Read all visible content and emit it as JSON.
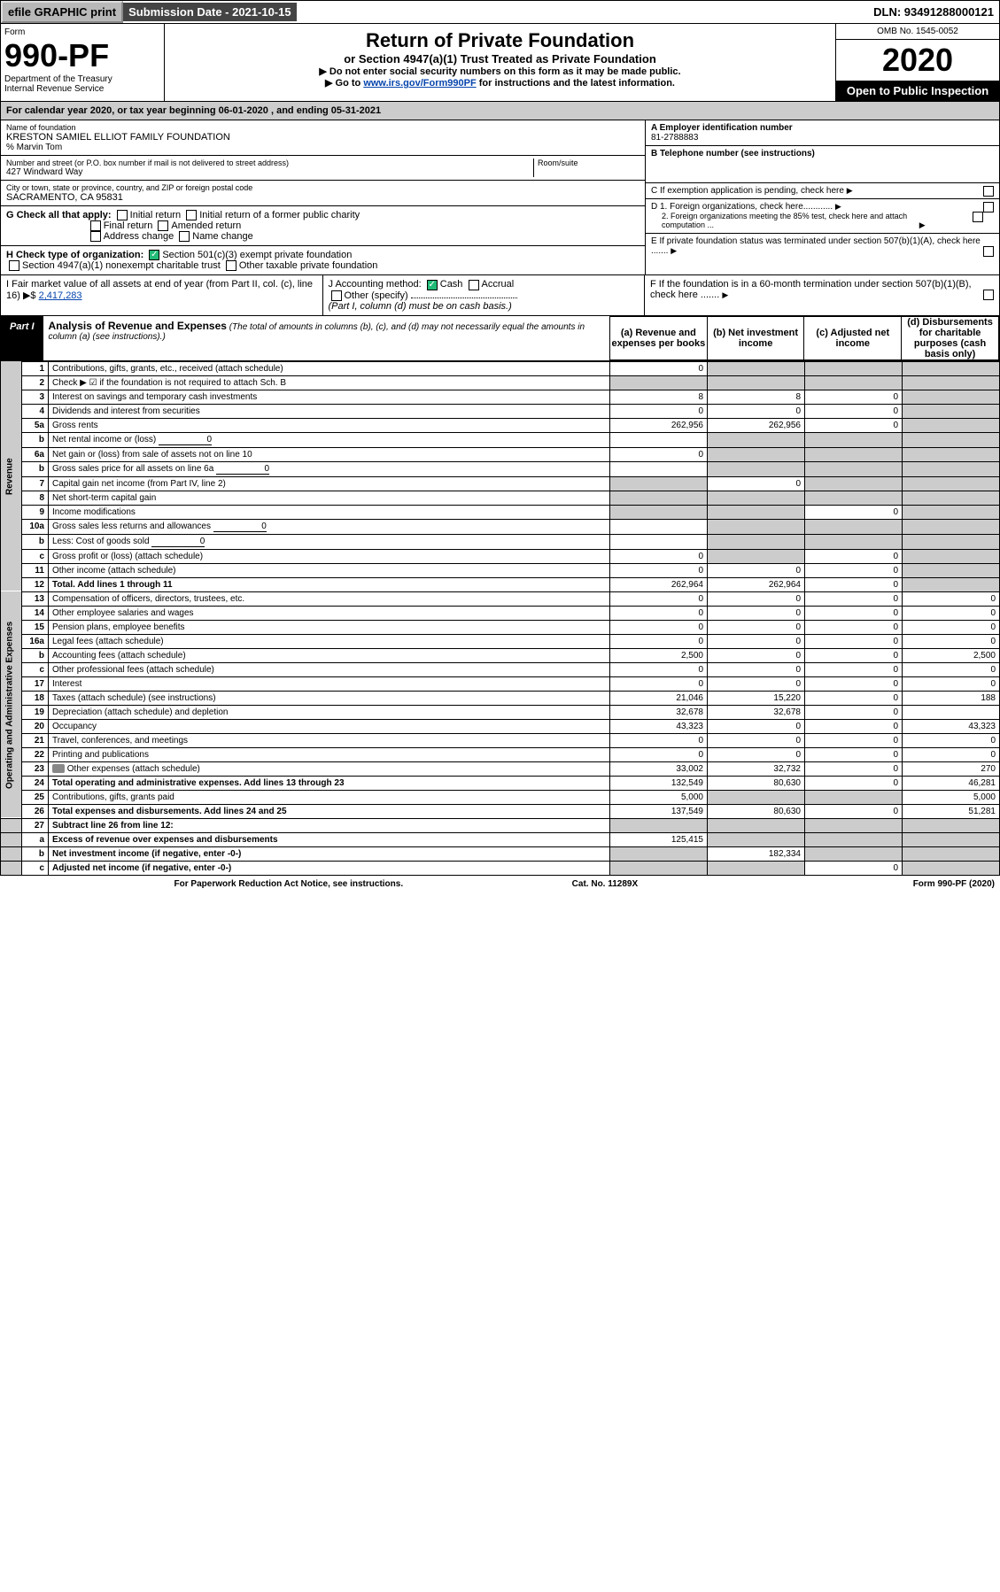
{
  "topbar": {
    "efile": "efile GRAPHIC print",
    "subdate": "Submission Date - 2021-10-15",
    "dln": "DLN: 93491288000121"
  },
  "hdr": {
    "form_label": "Form",
    "form_num": "990-PF",
    "dept": "Department of the Treasury",
    "irs": "Internal Revenue Service",
    "title": "Return of Private Foundation",
    "subtitle": "or Section 4947(a)(1) Trust Treated as Private Foundation",
    "note1": "▶ Do not enter social security numbers on this form as it may be made public.",
    "note2_pre": "▶ Go to ",
    "note2_link": "www.irs.gov/Form990PF",
    "note2_post": " for instructions and the latest information.",
    "omb": "OMB No. 1545-0052",
    "year": "2020",
    "otp": "Open to Public Inspection"
  },
  "cal": "For calendar year 2020, or tax year beginning 06-01-2020 , and ending 05-31-2021",
  "foundation": {
    "name_label": "Name of foundation",
    "name": "KRESTON SAMIEL ELLIOT FAMILY FOUNDATION",
    "care_of": "% Marvin Tom",
    "addr_label": "Number and street (or P.O. box number if mail is not delivered to street address)",
    "addr": "427 Windward Way",
    "room_label": "Room/suite",
    "city_label": "City or town, state or province, country, and ZIP or foreign postal code",
    "city": "SACRAMENTO, CA  95831"
  },
  "right_block": {
    "a_label": "A Employer identification number",
    "a_val": "81-2788883",
    "b_label": "B Telephone number (see instructions)",
    "c_label": "C If exemption application is pending, check here",
    "d1": "D 1. Foreign organizations, check here............",
    "d2": "2. Foreign organizations meeting the 85% test, check here and attach computation ...",
    "e": "E If private foundation status was terminated under section 507(b)(1)(A), check here .......",
    "f": "F If the foundation is in a 60-month termination under section 507(b)(1)(B), check here ......."
  },
  "g": {
    "label": "G Check all that apply:",
    "o1": "Initial return",
    "o2": "Initial return of a former public charity",
    "o3": "Final return",
    "o4": "Amended return",
    "o5": "Address change",
    "o6": "Name change"
  },
  "h": {
    "label": "H Check type of organization:",
    "o1": "Section 501(c)(3) exempt private foundation",
    "o2": "Section 4947(a)(1) nonexempt charitable trust",
    "o3": "Other taxable private foundation"
  },
  "i_label": "I Fair market value of all assets at end of year (from Part II, col. (c), line 16) ▶$",
  "i_val": "2,417,283",
  "j": {
    "label": "J Accounting method:",
    "o1": "Cash",
    "o2": "Accrual",
    "o3": "Other (specify)",
    "note": "(Part I, column (d) must be on cash basis.)"
  },
  "part1": {
    "tag": "Part I",
    "title": "Analysis of Revenue and Expenses",
    "sub": "(The total of amounts in columns (b), (c), and (d) may not necessarily equal the amounts in column (a) (see instructions).)",
    "col_a": "(a) Revenue and expenses per books",
    "col_b": "(b) Net investment income",
    "col_c": "(c) Adjusted net income",
    "col_d": "(d) Disbursements for charitable purposes (cash basis only)"
  },
  "sec_rev": "Revenue",
  "sec_exp": "Operating and Administrative Expenses",
  "rows": [
    {
      "n": "1",
      "d": "Contributions, gifts, grants, etc., received (attach schedule)",
      "a": "0"
    },
    {
      "n": "2",
      "d": "Check ▶ ☑ if the foundation is not required to attach Sch. B"
    },
    {
      "n": "3",
      "d": "Interest on savings and temporary cash investments",
      "a": "8",
      "b": "8",
      "c": "0"
    },
    {
      "n": "4",
      "d": "Dividends and interest from securities",
      "a": "0",
      "b": "0",
      "c": "0"
    },
    {
      "n": "5a",
      "d": "Gross rents",
      "a": "262,956",
      "b": "262,956",
      "c": "0"
    },
    {
      "n": "b",
      "d": "Net rental income or (loss)",
      "inline": "0"
    },
    {
      "n": "6a",
      "d": "Net gain or (loss) from sale of assets not on line 10",
      "a": "0"
    },
    {
      "n": "b",
      "d": "Gross sales price for all assets on line 6a",
      "inline": "0"
    },
    {
      "n": "7",
      "d": "Capital gain net income (from Part IV, line 2)",
      "b": "0"
    },
    {
      "n": "8",
      "d": "Net short-term capital gain"
    },
    {
      "n": "9",
      "d": "Income modifications",
      "c": "0"
    },
    {
      "n": "10a",
      "d": "Gross sales less returns and allowances",
      "inline": "0"
    },
    {
      "n": "b",
      "d": "Less: Cost of goods sold",
      "inline": "0"
    },
    {
      "n": "c",
      "d": "Gross profit or (loss) (attach schedule)",
      "a": "0",
      "c": "0"
    },
    {
      "n": "11",
      "d": "Other income (attach schedule)",
      "a": "0",
      "b": "0",
      "c": "0"
    },
    {
      "n": "12",
      "d": "Total. Add lines 1 through 11",
      "a": "262,964",
      "b": "262,964",
      "c": "0",
      "bold": true
    }
  ],
  "exp_rows": [
    {
      "n": "13",
      "d": "Compensation of officers, directors, trustees, etc.",
      "a": "0",
      "b": "0",
      "c": "0",
      "dd": "0"
    },
    {
      "n": "14",
      "d": "Other employee salaries and wages",
      "a": "0",
      "b": "0",
      "c": "0",
      "dd": "0"
    },
    {
      "n": "15",
      "d": "Pension plans, employee benefits",
      "a": "0",
      "b": "0",
      "c": "0",
      "dd": "0"
    },
    {
      "n": "16a",
      "d": "Legal fees (attach schedule)",
      "a": "0",
      "b": "0",
      "c": "0",
      "dd": "0"
    },
    {
      "n": "b",
      "d": "Accounting fees (attach schedule)",
      "a": "2,500",
      "b": "0",
      "c": "0",
      "dd": "2,500"
    },
    {
      "n": "c",
      "d": "Other professional fees (attach schedule)",
      "a": "0",
      "b": "0",
      "c": "0",
      "dd": "0"
    },
    {
      "n": "17",
      "d": "Interest",
      "a": "0",
      "b": "0",
      "c": "0",
      "dd": "0"
    },
    {
      "n": "18",
      "d": "Taxes (attach schedule) (see instructions)",
      "a": "21,046",
      "b": "15,220",
      "c": "0",
      "dd": "188"
    },
    {
      "n": "19",
      "d": "Depreciation (attach schedule) and depletion",
      "a": "32,678",
      "b": "32,678",
      "c": "0"
    },
    {
      "n": "20",
      "d": "Occupancy",
      "a": "43,323",
      "b": "0",
      "c": "0",
      "dd": "43,323"
    },
    {
      "n": "21",
      "d": "Travel, conferences, and meetings",
      "a": "0",
      "b": "0",
      "c": "0",
      "dd": "0"
    },
    {
      "n": "22",
      "d": "Printing and publications",
      "a": "0",
      "b": "0",
      "c": "0",
      "dd": "0"
    },
    {
      "n": "23",
      "d": "Other expenses (attach schedule)",
      "icon": true,
      "a": "33,002",
      "b": "32,732",
      "c": "0",
      "dd": "270"
    },
    {
      "n": "24",
      "d": "Total operating and administrative expenses. Add lines 13 through 23",
      "a": "132,549",
      "b": "80,630",
      "c": "0",
      "dd": "46,281",
      "bold": true
    },
    {
      "n": "25",
      "d": "Contributions, gifts, grants paid",
      "a": "5,000",
      "dd": "5,000"
    },
    {
      "n": "26",
      "d": "Total expenses and disbursements. Add lines 24 and 25",
      "a": "137,549",
      "b": "80,630",
      "c": "0",
      "dd": "51,281",
      "bold": true
    }
  ],
  "net_rows": [
    {
      "n": "27",
      "d": "Subtract line 26 from line 12:",
      "bold": true
    },
    {
      "n": "a",
      "d": "Excess of revenue over expenses and disbursements",
      "a": "125,415",
      "bold": true
    },
    {
      "n": "b",
      "d": "Net investment income (if negative, enter -0-)",
      "b": "182,334",
      "bold": true
    },
    {
      "n": "c",
      "d": "Adjusted net income (if negative, enter -0-)",
      "c": "0",
      "bold": true
    }
  ],
  "foot": {
    "l": "For Paperwork Reduction Act Notice, see instructions.",
    "c": "Cat. No. 11289X",
    "r": "Form 990-PF (2020)"
  }
}
